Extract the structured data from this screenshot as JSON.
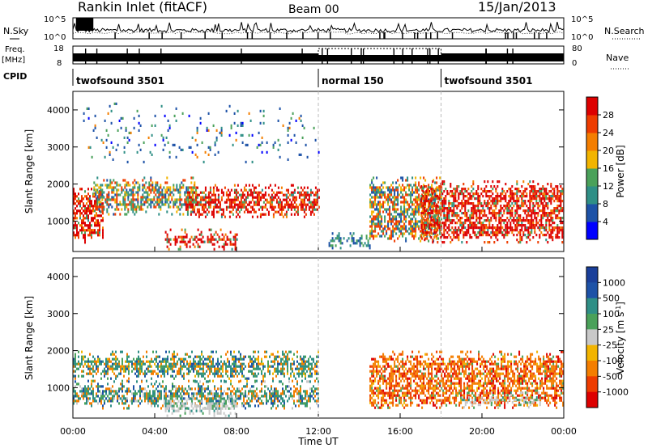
{
  "header": {
    "station": "Rankin Inlet (fitACF)",
    "beam": "Beam 00",
    "date": "15/Jan/2013"
  },
  "top_panels": {
    "nsky_label": "N.Sky",
    "nsearch_label": "N.Search",
    "noise_tick_high": "10^5",
    "noise_tick_low": "10^0",
    "freq_label_line1": "Freq.",
    "freq_label_line2": "[MHz]",
    "freq_tick_high": "18",
    "freq_tick_low": "8",
    "nave_label": "Nave",
    "nave_tick_high": "80",
    "nave_tick_low": "0",
    "cpid_label": "CPID",
    "cpid_segments": [
      {
        "label": "twofsound 3501",
        "start": 0,
        "end": 12
      },
      {
        "label": "normal 150",
        "start": 12,
        "end": 18
      },
      {
        "label": "twofsound 3501",
        "start": 18,
        "end": 24
      }
    ]
  },
  "colors": {
    "power": [
      "#0000ff",
      "#1d52a7",
      "#2f8f86",
      "#4aa15a",
      "#f2b400",
      "#f47e00",
      "#ee3c00",
      "#dd0000"
    ],
    "velocity": [
      "#dd0000",
      "#ee3c00",
      "#f47e00",
      "#f2b400",
      "#c8c8c8",
      "#4aa15a",
      "#2f8f86",
      "#1d52a7",
      "#1a3f9a"
    ]
  },
  "chart_data": [
    {
      "type": "heatmap",
      "panel": "power",
      "ylabel": "Slant Range [km]",
      "xlabel": "Time UT",
      "x_ticks": [
        "00:00",
        "04:00",
        "08:00",
        "12:00",
        "16:00",
        "20:00",
        "00:00"
      ],
      "y_ticks": [
        1000,
        2000,
        3000,
        4000
      ],
      "xlim": [
        0,
        24
      ],
      "ylim": [
        180,
        4500
      ],
      "colorbar": {
        "label": "Power [dB]",
        "ticks": [
          "4",
          "8",
          "12",
          "16",
          "20",
          "24",
          "28"
        ],
        "range": [
          0,
          32
        ]
      },
      "echo_regions": [
        {
          "t0": 0.0,
          "t1": 1.5,
          "r0": 450,
          "r1": 1900,
          "level": "high"
        },
        {
          "t0": 1.0,
          "t1": 6.0,
          "r0": 1200,
          "r1": 2200,
          "level": "medium"
        },
        {
          "t0": 4.5,
          "t1": 8.0,
          "r0": 250,
          "r1": 800,
          "level": "high"
        },
        {
          "t0": 5.5,
          "t1": 12.0,
          "r0": 1100,
          "r1": 2000,
          "level": "high"
        },
        {
          "t0": 12.5,
          "t1": 14.5,
          "r0": 250,
          "r1": 700,
          "level": "low"
        },
        {
          "t0": 14.5,
          "t1": 18.0,
          "r0": 450,
          "r1": 2200,
          "level": "medium"
        },
        {
          "t0": 17.0,
          "t1": 24.0,
          "r0": 450,
          "r1": 2100,
          "level": "high"
        },
        {
          "t0": 0.5,
          "t1": 12.0,
          "r0": 2600,
          "r1": 4200,
          "level": "scatter"
        }
      ]
    },
    {
      "type": "heatmap",
      "panel": "velocity",
      "ylabel": "Slant Range [km]",
      "xlabel": "Time UT",
      "x_ticks": [
        "00:00",
        "04:00",
        "08:00",
        "12:00",
        "16:00",
        "20:00",
        "00:00"
      ],
      "y_ticks": [
        1000,
        2000,
        3000,
        4000
      ],
      "xlim": [
        0,
        24
      ],
      "ylim": [
        180,
        4500
      ],
      "colorbar": {
        "label": "Velocity [m s^-1]",
        "ticks": [
          "1000",
          "500",
          "100",
          "25",
          "-25",
          "-100",
          "-500",
          "-1000"
        ],
        "range": [
          -1000,
          1000
        ]
      },
      "echo_regions": [
        {
          "t0": 0.0,
          "t1": 12.0,
          "r0": 1200,
          "r1": 2000,
          "level": "positive"
        },
        {
          "t0": 0.0,
          "t1": 12.0,
          "r0": 450,
          "r1": 1200,
          "level": "mixed"
        },
        {
          "t0": 4.5,
          "t1": 8.0,
          "r0": 250,
          "r1": 800,
          "level": "ground"
        },
        {
          "t0": 14.5,
          "t1": 24.0,
          "r0": 450,
          "r1": 2000,
          "level": "negative"
        },
        {
          "t0": 19.0,
          "t1": 23.0,
          "r0": 500,
          "r1": 900,
          "level": "ground"
        }
      ]
    }
  ]
}
